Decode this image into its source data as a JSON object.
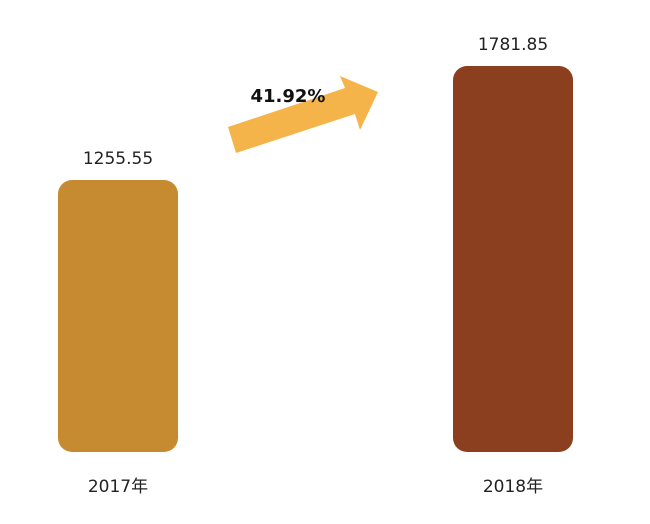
{
  "chart_data": {
    "type": "bar",
    "categories": [
      "2017年",
      "2018年"
    ],
    "values": [
      1255.55,
      1781.85
    ],
    "colors": [
      "#c68b30",
      "#8b3f1f"
    ],
    "annotation": "41.92%"
  }
}
